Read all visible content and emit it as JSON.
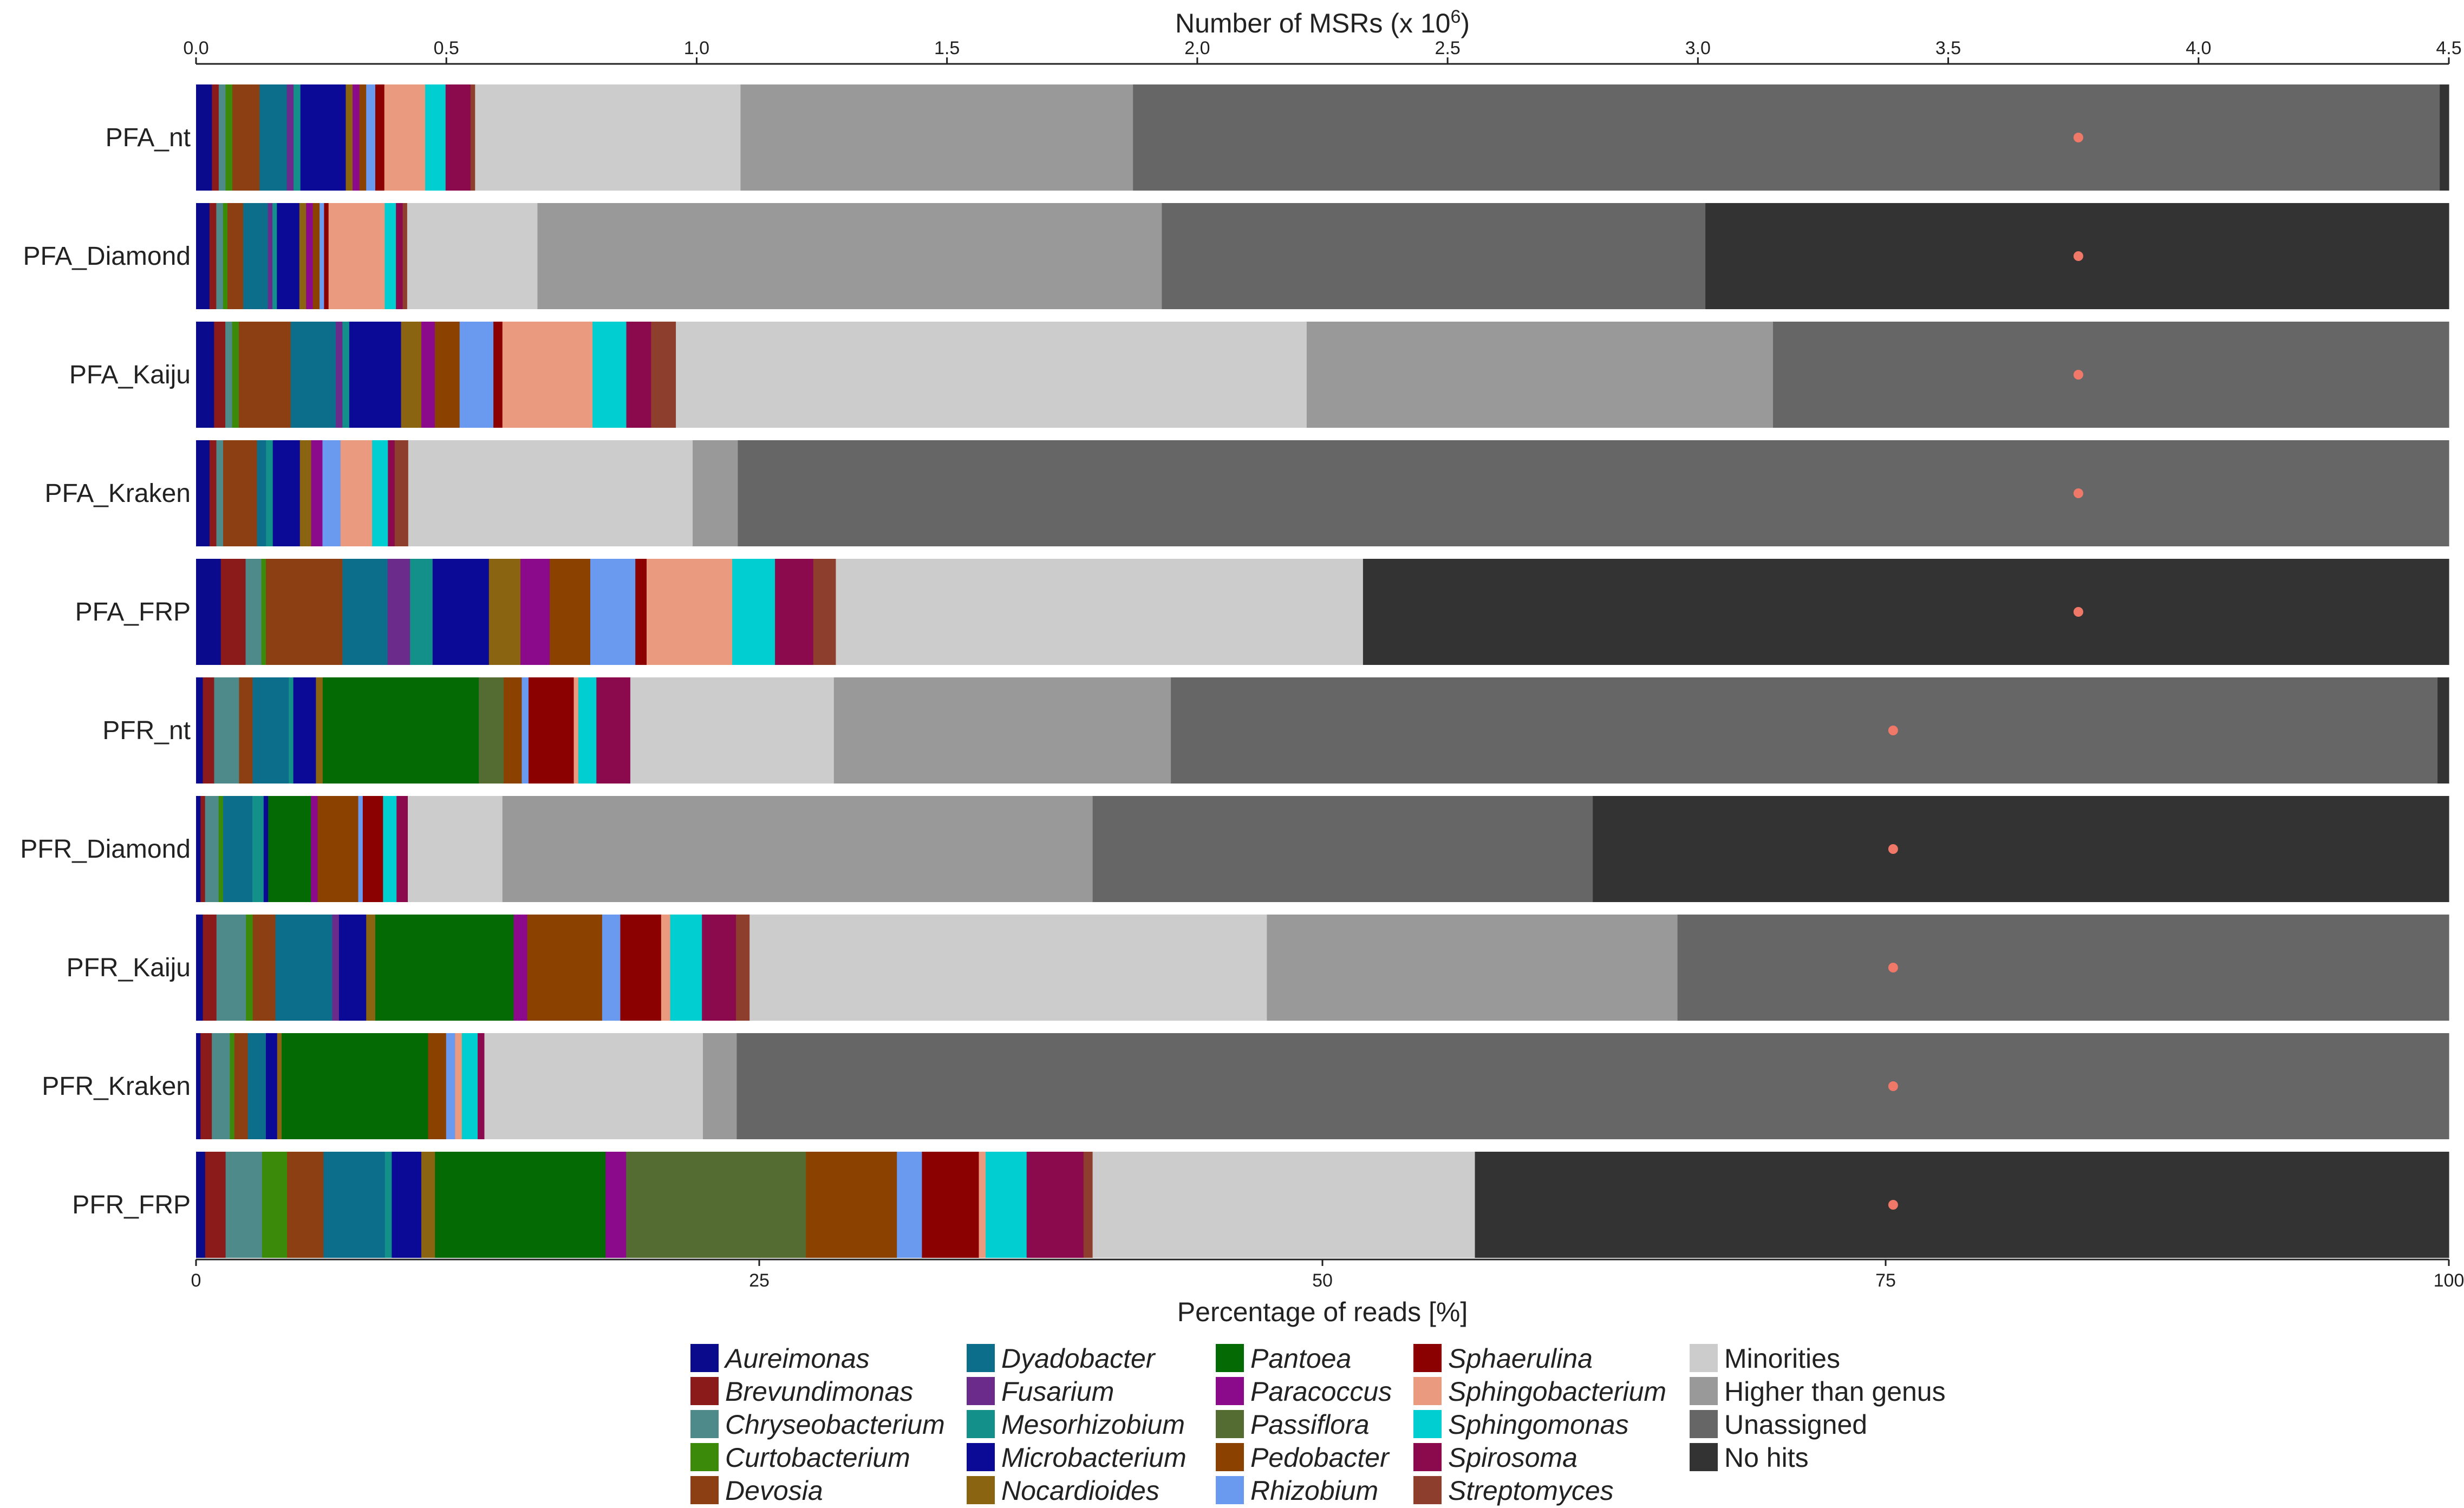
{
  "chart_data": {
    "type": "stacked-bar-horizontal",
    "top_axis": {
      "title_prefix": "Number of MSRs (x 10",
      "title_exponent": "6",
      "title_suffix": ")",
      "range": [
        0,
        4.5
      ],
      "ticks": [
        0,
        0.5,
        1.0,
        1.5,
        2.0,
        2.5,
        3.0,
        3.5,
        4.0,
        4.5
      ],
      "tick_labels": [
        "0.0",
        "0.5",
        "1.0",
        "1.5",
        "2.0",
        "2.5",
        "3.0",
        "3.5",
        "4.0",
        "4.5"
      ]
    },
    "bottom_axis": {
      "title": "Percentage of reads [%]",
      "range": [
        0,
        100
      ],
      "ticks": [
        0,
        25,
        50,
        75,
        100
      ],
      "tick_labels": [
        "0",
        "25",
        "50",
        "75",
        "100"
      ]
    },
    "categories": [
      {
        "name": "Aureimonas",
        "color": "#0a0a8c",
        "italic": true
      },
      {
        "name": "Brevundimonas",
        "color": "#8b1a1a",
        "italic": true
      },
      {
        "name": "Chryseobacterium",
        "color": "#4e8a8a",
        "italic": true
      },
      {
        "name": "Curtobacterium",
        "color": "#3b8a0a",
        "italic": true
      },
      {
        "name": "Devosia",
        "color": "#8b3f12",
        "italic": true
      },
      {
        "name": "Dyadobacter",
        "color": "#0d6e8c",
        "italic": true
      },
      {
        "name": "Fusarium",
        "color": "#6a2b8a",
        "italic": true
      },
      {
        "name": "Mesorhizobium",
        "color": "#14908a",
        "italic": true
      },
      {
        "name": "Microbacterium",
        "color": "#0a0a96",
        "italic": true
      },
      {
        "name": "Nocardioides",
        "color": "#8a6410",
        "italic": true
      },
      {
        "name": "Pantoea",
        "color": "#046b04",
        "italic": true
      },
      {
        "name": "Paracoccus",
        "color": "#8b0a8b",
        "italic": true
      },
      {
        "name": "Passiflora",
        "color": "#546b32",
        "italic": true
      },
      {
        "name": "Pedobacter",
        "color": "#8b4200",
        "italic": true
      },
      {
        "name": "Rhizobium",
        "color": "#6a9af0",
        "italic": true
      },
      {
        "name": "Sphaerulina",
        "color": "#8b0000",
        "italic": true
      },
      {
        "name": "Sphingobacterium",
        "color": "#ea9a7e",
        "italic": true
      },
      {
        "name": "Sphingomonas",
        "color": "#00ced1",
        "italic": true
      },
      {
        "name": "Spirosoma",
        "color": "#8b0a4e",
        "italic": true
      },
      {
        "name": "Streptomyces",
        "color": "#8e3e2c",
        "italic": true
      },
      {
        "name": "Minorities",
        "color": "#cccccc",
        "italic": false
      },
      {
        "name": "Higher than genus",
        "color": "#999999",
        "italic": false
      },
      {
        "name": "Unassigned",
        "color": "#666666",
        "italic": false
      },
      {
        "name": "No hits",
        "color": "#333333",
        "italic": false
      }
    ],
    "dot_color": "#f07868",
    "series": [
      {
        "label": "PFA_nt",
        "msr_millions": 3.76,
        "segments": [
          [
            "Aureimonas",
            0.7
          ],
          [
            "Brevundimonas",
            0.3
          ],
          [
            "Chryseobacterium",
            0.3
          ],
          [
            "Curtobacterium",
            0.3
          ],
          [
            "Devosia",
            1.2
          ],
          [
            "Dyadobacter",
            1.2
          ],
          [
            "Fusarium",
            0.3
          ],
          [
            "Mesorhizobium",
            0.3
          ],
          [
            "Microbacterium",
            2.0
          ],
          [
            "Nocardioides",
            0.3
          ],
          [
            "Paracoccus",
            0.3
          ],
          [
            "Pedobacter",
            0.3
          ],
          [
            "Rhizobium",
            0.4
          ],
          [
            "Sphaerulina",
            0.4
          ],
          [
            "Sphingobacterium",
            1.8
          ],
          [
            "Sphingomonas",
            0.9
          ],
          [
            "Spirosoma",
            1.1
          ],
          [
            "Streptomyces",
            0.2
          ],
          [
            "Minorities",
            11.7
          ],
          [
            "Higher than genus",
            17.3
          ],
          [
            "Unassigned",
            57.6
          ],
          [
            "No hits",
            0.4
          ]
        ]
      },
      {
        "label": "PFA_Diamond",
        "msr_millions": 3.76,
        "segments": [
          [
            "Aureimonas",
            0.6
          ],
          [
            "Brevundimonas",
            0.3
          ],
          [
            "Chryseobacterium",
            0.3
          ],
          [
            "Curtobacterium",
            0.2
          ],
          [
            "Devosia",
            0.7
          ],
          [
            "Dyadobacter",
            1.1
          ],
          [
            "Fusarium",
            0.2
          ],
          [
            "Mesorhizobium",
            0.2
          ],
          [
            "Microbacterium",
            1.0
          ],
          [
            "Nocardioides",
            0.3
          ],
          [
            "Paracoccus",
            0.3
          ],
          [
            "Pedobacter",
            0.3
          ],
          [
            "Rhizobium",
            0.2
          ],
          [
            "Sphaerulina",
            0.2
          ],
          [
            "Sphingobacterium",
            2.5
          ],
          [
            "Sphingomonas",
            0.5
          ],
          [
            "Spirosoma",
            0.3
          ],
          [
            "Streptomyces",
            0.2
          ],
          [
            "Minorities",
            5.8
          ],
          [
            "Higher than genus",
            27.8
          ],
          [
            "Unassigned",
            24.2
          ],
          [
            "No hits",
            33.1
          ]
        ]
      },
      {
        "label": "PFA_Kaiju",
        "msr_millions": 3.76,
        "segments": [
          [
            "Aureimonas",
            0.8
          ],
          [
            "Brevundimonas",
            0.5
          ],
          [
            "Chryseobacterium",
            0.3
          ],
          [
            "Curtobacterium",
            0.3
          ],
          [
            "Devosia",
            2.3
          ],
          [
            "Dyadobacter",
            2.0
          ],
          [
            "Fusarium",
            0.3
          ],
          [
            "Mesorhizobium",
            0.3
          ],
          [
            "Microbacterium",
            2.3
          ],
          [
            "Nocardioides",
            0.9
          ],
          [
            "Paracoccus",
            0.6
          ],
          [
            "Pedobacter",
            1.1
          ],
          [
            "Rhizobium",
            1.5
          ],
          [
            "Sphaerulina",
            0.4
          ],
          [
            "Sphingobacterium",
            4.0
          ],
          [
            "Sphingomonas",
            1.5
          ],
          [
            "Spirosoma",
            1.1
          ],
          [
            "Streptomyces",
            1.1
          ],
          [
            "Minorities",
            28.0
          ],
          [
            "Higher than genus",
            20.7
          ],
          [
            "Unassigned",
            30.0
          ]
        ]
      },
      {
        "label": "PFA_Kraken",
        "msr_millions": 3.76,
        "segments": [
          [
            "Aureimonas",
            0.6
          ],
          [
            "Brevundimonas",
            0.3
          ],
          [
            "Chryseobacterium",
            0.3
          ],
          [
            "Devosia",
            1.5
          ],
          [
            "Dyadobacter",
            0.4
          ],
          [
            "Mesorhizobium",
            0.3
          ],
          [
            "Microbacterium",
            1.2
          ],
          [
            "Nocardioides",
            0.5
          ],
          [
            "Paracoccus",
            0.5
          ],
          [
            "Rhizobium",
            0.8
          ],
          [
            "Sphingobacterium",
            1.4
          ],
          [
            "Sphingomonas",
            0.7
          ],
          [
            "Spirosoma",
            0.3
          ],
          [
            "Streptomyces",
            0.6
          ],
          [
            "Minorities",
            12.6
          ],
          [
            "Higher than genus",
            2.0
          ],
          [
            "Unassigned",
            75.8
          ]
        ]
      },
      {
        "label": "PFA_FRP",
        "msr_millions": 3.76,
        "segments": [
          [
            "Aureimonas",
            1.1
          ],
          [
            "Brevundimonas",
            1.1
          ],
          [
            "Chryseobacterium",
            0.7
          ],
          [
            "Curtobacterium",
            0.2
          ],
          [
            "Devosia",
            3.4
          ],
          [
            "Dyadobacter",
            2.0
          ],
          [
            "Fusarium",
            1.0
          ],
          [
            "Mesorhizobium",
            1.0
          ],
          [
            "Microbacterium",
            2.5
          ],
          [
            "Nocardioides",
            1.4
          ],
          [
            "Paracoccus",
            1.3
          ],
          [
            "Pedobacter",
            1.8
          ],
          [
            "Rhizobium",
            2.0
          ],
          [
            "Sphaerulina",
            0.5
          ],
          [
            "Sphingobacterium",
            3.8
          ],
          [
            "Sphingomonas",
            1.9
          ],
          [
            "Spirosoma",
            1.7
          ],
          [
            "Streptomyces",
            1.0
          ],
          [
            "Minorities",
            23.4
          ],
          [
            "No hits",
            48.2
          ]
        ]
      },
      {
        "label": "PFR_nt",
        "msr_millions": 3.39,
        "segments": [
          [
            "Aureimonas",
            0.3
          ],
          [
            "Brevundimonas",
            0.5
          ],
          [
            "Chryseobacterium",
            1.1
          ],
          [
            "Devosia",
            0.6
          ],
          [
            "Dyadobacter",
            1.6
          ],
          [
            "Mesorhizobium",
            0.2
          ],
          [
            "Microbacterium",
            1.0
          ],
          [
            "Nocardioides",
            0.3
          ],
          [
            "Pantoea",
            6.9
          ],
          [
            "Passiflora",
            1.1
          ],
          [
            "Pedobacter",
            0.8
          ],
          [
            "Rhizobium",
            0.3
          ],
          [
            "Sphaerulina",
            2.0
          ],
          [
            "Sphingobacterium",
            0.2
          ],
          [
            "Sphingomonas",
            0.8
          ],
          [
            "Spirosoma",
            1.5
          ],
          [
            "Minorities",
            9.0
          ],
          [
            "Higher than genus",
            14.9
          ],
          [
            "Unassigned",
            56.0
          ],
          [
            "No hits",
            0.5
          ]
        ]
      },
      {
        "label": "PFR_Diamond",
        "msr_millions": 3.39,
        "segments": [
          [
            "Aureimonas",
            0.2
          ],
          [
            "Brevundimonas",
            0.2
          ],
          [
            "Chryseobacterium",
            0.6
          ],
          [
            "Curtobacterium",
            0.2
          ],
          [
            "Dyadobacter",
            1.3
          ],
          [
            "Mesorhizobium",
            0.5
          ],
          [
            "Microbacterium",
            0.2
          ],
          [
            "Pantoea",
            1.9
          ],
          [
            "Paracoccus",
            0.3
          ],
          [
            "Pedobacter",
            1.8
          ],
          [
            "Rhizobium",
            0.2
          ],
          [
            "Sphaerulina",
            0.9
          ],
          [
            "Sphingomonas",
            0.6
          ],
          [
            "Spirosoma",
            0.5
          ],
          [
            "Minorities",
            4.2
          ],
          [
            "Higher than genus",
            26.2
          ],
          [
            "Unassigned",
            22.2
          ],
          [
            "No hits",
            38.0
          ]
        ]
      },
      {
        "label": "PFR_Kaiju",
        "msr_millions": 3.39,
        "segments": [
          [
            "Aureimonas",
            0.3
          ],
          [
            "Brevundimonas",
            0.6
          ],
          [
            "Chryseobacterium",
            1.3
          ],
          [
            "Curtobacterium",
            0.3
          ],
          [
            "Devosia",
            1.0
          ],
          [
            "Dyadobacter",
            2.5
          ],
          [
            "Fusarium",
            0.3
          ],
          [
            "Microbacterium",
            1.2
          ],
          [
            "Nocardioides",
            0.4
          ],
          [
            "Pantoea",
            6.1
          ],
          [
            "Paracoccus",
            0.6
          ],
          [
            "Pedobacter",
            3.3
          ],
          [
            "Rhizobium",
            0.8
          ],
          [
            "Sphaerulina",
            1.8
          ],
          [
            "Sphingobacterium",
            0.4
          ],
          [
            "Sphingomonas",
            1.4
          ],
          [
            "Spirosoma",
            1.5
          ],
          [
            "Streptomyces",
            0.6
          ],
          [
            "Minorities",
            22.8
          ],
          [
            "Higher than genus",
            18.1
          ],
          [
            "Unassigned",
            34.0
          ]
        ]
      },
      {
        "label": "PFR_Kraken",
        "msr_millions": 3.39,
        "segments": [
          [
            "Aureimonas",
            0.2
          ],
          [
            "Brevundimonas",
            0.5
          ],
          [
            "Chryseobacterium",
            0.8
          ],
          [
            "Curtobacterium",
            0.2
          ],
          [
            "Devosia",
            0.6
          ],
          [
            "Dyadobacter",
            0.8
          ],
          [
            "Microbacterium",
            0.5
          ],
          [
            "Nocardioides",
            0.2
          ],
          [
            "Pantoea",
            6.5
          ],
          [
            "Pedobacter",
            0.8
          ],
          [
            "Rhizobium",
            0.4
          ],
          [
            "Sphingobacterium",
            0.3
          ],
          [
            "Sphingomonas",
            0.7
          ],
          [
            "Spirosoma",
            0.3
          ],
          [
            "Minorities",
            9.7
          ],
          [
            "Higher than genus",
            1.5
          ],
          [
            "Unassigned",
            76.0
          ]
        ]
      },
      {
        "label": "PFR_FRP",
        "msr_millions": 3.39,
        "segments": [
          [
            "Aureimonas",
            0.4
          ],
          [
            "Brevundimonas",
            0.9
          ],
          [
            "Chryseobacterium",
            1.6
          ],
          [
            "Curtobacterium",
            1.1
          ],
          [
            "Devosia",
            1.6
          ],
          [
            "Dyadobacter",
            2.7
          ],
          [
            "Mesorhizobium",
            0.3
          ],
          [
            "Microbacterium",
            1.3
          ],
          [
            "Nocardioides",
            0.6
          ],
          [
            "Pantoea",
            7.5
          ],
          [
            "Paracoccus",
            0.9
          ],
          [
            "Passiflora",
            7.9
          ],
          [
            "Pedobacter",
            4.0
          ],
          [
            "Rhizobium",
            1.1
          ],
          [
            "Sphaerulina",
            2.5
          ],
          [
            "Sphingobacterium",
            0.3
          ],
          [
            "Sphingomonas",
            1.8
          ],
          [
            "Spirosoma",
            2.5
          ],
          [
            "Streptomyces",
            0.4
          ],
          [
            "Minorities",
            16.8
          ],
          [
            "No hits",
            42.8
          ]
        ]
      }
    ]
  }
}
